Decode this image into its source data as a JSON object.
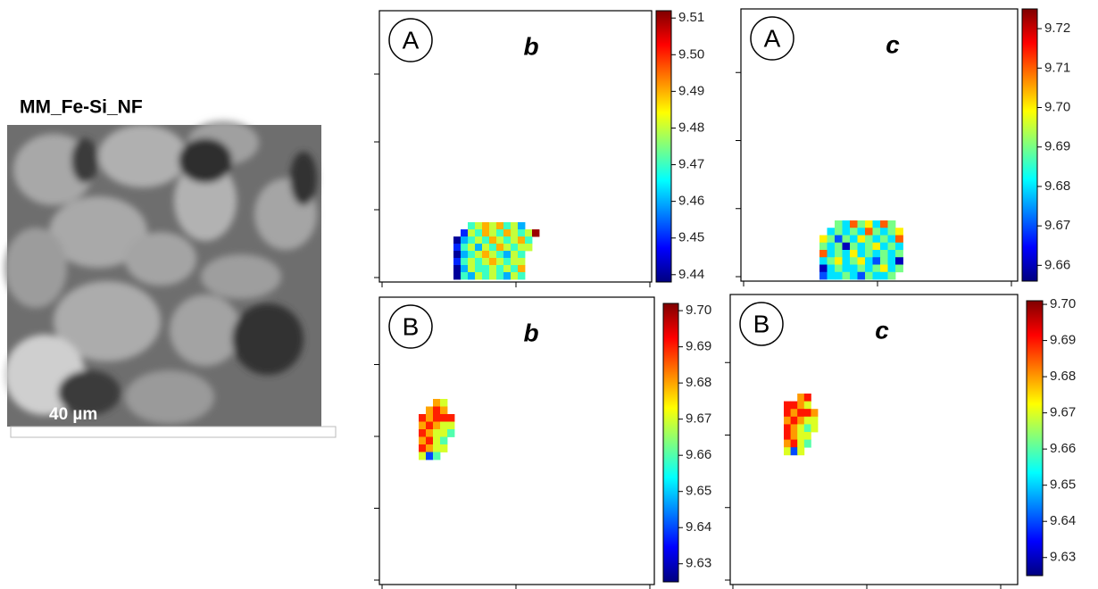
{
  "micrograph": {
    "label": "MM_Fe-Si_NF",
    "scale_bar": "40 µm"
  },
  "chart_data": [
    {
      "type": "heatmap",
      "panel": "A",
      "title": "b",
      "colormap": "jet",
      "zlim": [
        9.438,
        9.512
      ],
      "zticks": [
        9.44,
        9.45,
        9.46,
        9.47,
        9.48,
        9.49,
        {
          "value": 9.5,
          "label": "9.50"
        },
        9.51
      ],
      "values": [
        [
          null,
          null,
          9.47,
          9.48,
          9.49,
          9.48,
          9.49,
          9.47,
          9.48,
          9.46,
          null,
          null
        ],
        [
          null,
          9.45,
          9.48,
          9.47,
          9.49,
          9.48,
          9.47,
          9.49,
          9.48,
          9.47,
          9.48,
          9.51
        ],
        [
          9.44,
          9.46,
          9.47,
          9.48,
          9.47,
          9.49,
          9.48,
          9.47,
          9.48,
          9.49,
          9.47,
          null
        ],
        [
          9.45,
          9.47,
          9.48,
          9.46,
          9.48,
          9.47,
          9.49,
          9.48,
          9.47,
          9.48,
          9.48,
          null
        ],
        [
          9.44,
          9.46,
          9.47,
          9.48,
          9.49,
          9.48,
          9.47,
          9.46,
          9.48,
          9.47,
          null,
          null
        ],
        [
          9.45,
          9.47,
          9.48,
          9.47,
          9.48,
          9.49,
          9.48,
          9.47,
          9.48,
          9.48,
          null,
          null
        ],
        [
          9.44,
          9.46,
          9.48,
          9.47,
          9.47,
          9.48,
          9.47,
          9.48,
          9.47,
          9.49,
          null,
          null
        ],
        [
          9.44,
          9.47,
          9.46,
          9.48,
          9.47,
          9.48,
          9.47,
          9.46,
          9.48,
          9.47,
          null,
          null
        ]
      ]
    },
    {
      "type": "heatmap",
      "panel": "A",
      "title": "c",
      "colormap": "jet",
      "zlim": [
        9.656,
        9.725
      ],
      "zticks": [
        9.66,
        9.67,
        9.68,
        9.69,
        {
          "value": 9.7,
          "label": "9.70"
        },
        9.71,
        9.72
      ],
      "values": [
        [
          null,
          null,
          9.69,
          9.68,
          9.71,
          9.69,
          9.7,
          9.68,
          9.71,
          9.69,
          null,
          null
        ],
        [
          null,
          9.68,
          9.69,
          9.68,
          9.69,
          9.68,
          9.71,
          9.69,
          9.68,
          9.69,
          9.7,
          null
        ],
        [
          9.7,
          9.69,
          9.67,
          9.69,
          9.68,
          9.7,
          9.69,
          9.68,
          9.69,
          9.68,
          9.71,
          null
        ],
        [
          9.69,
          9.68,
          9.69,
          9.66,
          9.69,
          9.68,
          9.69,
          9.7,
          9.68,
          9.69,
          9.68,
          null
        ],
        [
          9.71,
          9.68,
          9.69,
          9.68,
          9.7,
          9.68,
          9.69,
          9.68,
          9.69,
          9.68,
          9.69,
          null
        ],
        [
          9.68,
          9.69,
          9.7,
          9.68,
          9.69,
          9.7,
          9.68,
          9.67,
          9.69,
          9.68,
          9.66,
          null
        ],
        [
          9.66,
          9.68,
          9.69,
          9.68,
          9.68,
          9.69,
          9.68,
          9.69,
          9.7,
          9.68,
          9.69,
          null
        ],
        [
          9.67,
          9.68,
          9.68,
          9.69,
          9.68,
          9.67,
          9.69,
          9.68,
          9.68,
          9.69,
          null,
          null
        ]
      ]
    },
    {
      "type": "heatmap",
      "panel": "B",
      "title": "b",
      "colormap": "jet",
      "zlim": [
        9.625,
        9.702
      ],
      "zticks": [
        9.63,
        9.64,
        9.65,
        9.66,
        9.67,
        9.68,
        9.69,
        {
          "value": 9.7,
          "label": "9.70"
        }
      ],
      "values": [
        [
          null,
          null,
          9.68,
          9.67,
          null
        ],
        [
          null,
          9.68,
          9.69,
          9.68,
          null
        ],
        [
          9.69,
          9.68,
          9.69,
          9.69,
          9.69
        ],
        [
          9.68,
          9.69,
          9.68,
          9.67,
          9.67
        ],
        [
          9.69,
          9.68,
          9.67,
          9.67,
          9.66
        ],
        [
          9.68,
          9.69,
          9.67,
          9.66,
          null
        ],
        [
          9.69,
          9.68,
          9.67,
          9.67,
          null
        ],
        [
          9.67,
          9.64,
          9.66,
          null,
          null
        ]
      ]
    },
    {
      "type": "heatmap",
      "panel": "B",
      "title": "c",
      "colormap": "jet",
      "zlim": [
        9.625,
        9.701
      ],
      "zticks": [
        9.63,
        9.64,
        9.65,
        9.66,
        9.67,
        9.68,
        9.69,
        {
          "value": 9.7,
          "label": "9.70"
        }
      ],
      "values": [
        [
          null,
          null,
          9.68,
          9.69,
          null
        ],
        [
          9.69,
          9.69,
          9.68,
          9.67,
          null
        ],
        [
          9.69,
          9.68,
          9.69,
          9.69,
          9.68
        ],
        [
          9.68,
          9.69,
          9.68,
          9.67,
          9.67
        ],
        [
          9.69,
          9.68,
          9.67,
          9.66,
          9.67
        ],
        [
          9.69,
          9.68,
          9.67,
          9.67,
          null
        ],
        [
          9.68,
          9.69,
          9.67,
          9.66,
          null
        ],
        [
          9.67,
          9.64,
          9.67,
          null,
          null
        ]
      ]
    }
  ]
}
